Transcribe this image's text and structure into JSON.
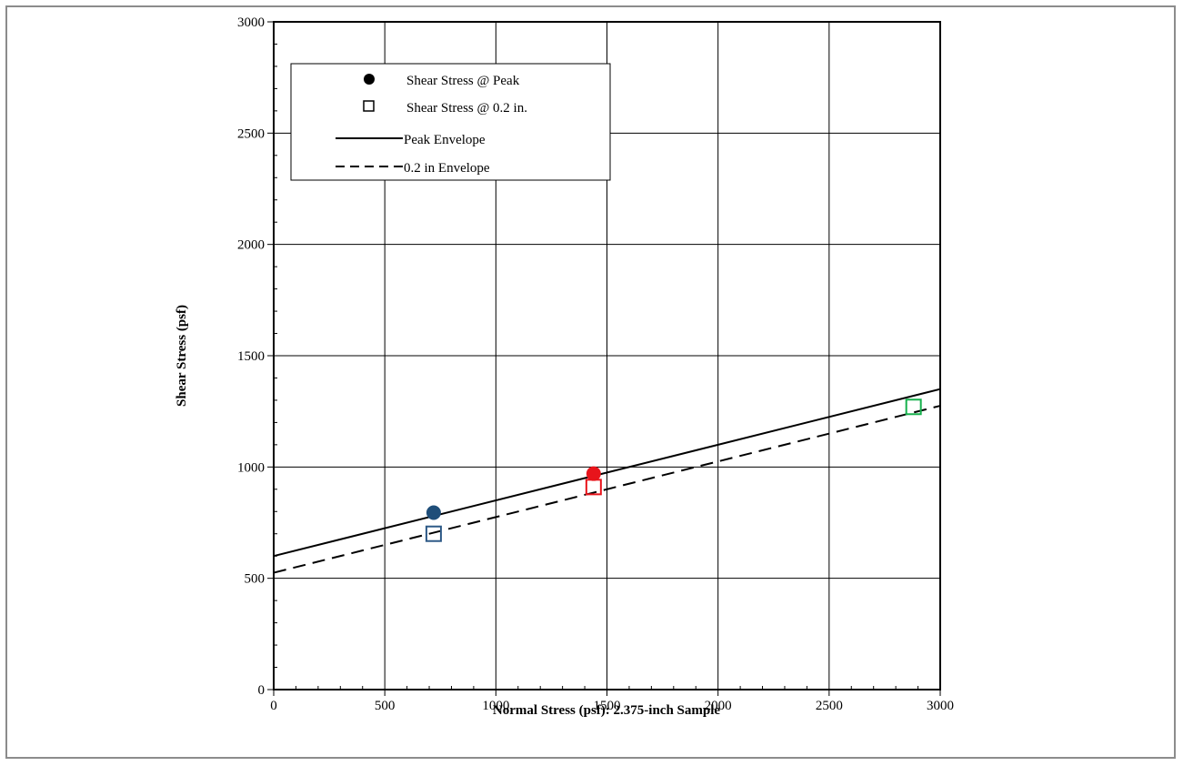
{
  "chart_data": {
    "type": "scatter",
    "xlabel": "Normal Stress (psf): 2.375-inch Sample",
    "ylabel": "Shear Stress (psf)",
    "xlim": [
      0,
      3000
    ],
    "ylim": [
      0,
      3000
    ],
    "x_ticks": [
      0,
      500,
      1000,
      1500,
      2000,
      2500,
      3000
    ],
    "y_ticks": [
      0,
      500,
      1000,
      1500,
      2000,
      2500,
      3000
    ],
    "minor_tick_step": 100,
    "grid": true,
    "legend_position": "top-left",
    "series": [
      {
        "name": "Shear Stress @ Peak",
        "kind": "points",
        "marker": "filled-circle",
        "points": [
          {
            "x": 720,
            "y": 795,
            "color": "#1f4e79"
          },
          {
            "x": 1440,
            "y": 970,
            "color": "#e8141b"
          }
        ]
      },
      {
        "name": "Shear Stress @ 0.2 in.",
        "kind": "points",
        "marker": "open-square",
        "points": [
          {
            "x": 720,
            "y": 700,
            "color": "#2e5a87"
          },
          {
            "x": 1440,
            "y": 910,
            "color": "#e8141b"
          },
          {
            "x": 2880,
            "y": 1270,
            "color": "#16b04c"
          }
        ]
      },
      {
        "name": "Peak Envelope",
        "kind": "line",
        "style": "solid",
        "x": [
          0,
          3000
        ],
        "y": [
          600,
          1350
        ]
      },
      {
        "name": "0.2 in Envelope",
        "kind": "line",
        "style": "dashed",
        "x": [
          0,
          3000
        ],
        "y": [
          525,
          1275
        ]
      }
    ]
  }
}
